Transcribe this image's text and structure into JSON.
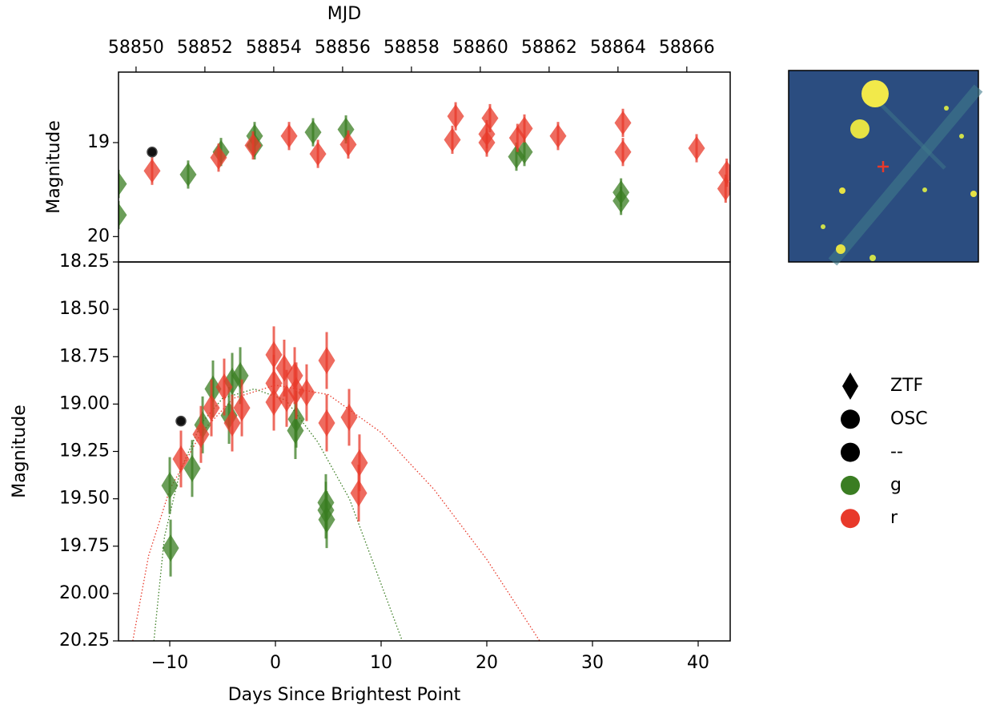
{
  "chart_data": [
    {
      "type": "scatter",
      "ylabel": "Magnitude",
      "x2label": "MJD",
      "xlim": [
        -14.85,
        43.03
      ],
      "ylim": [
        20.27,
        18.25
      ],
      "yticks": [
        19,
        20
      ],
      "x2lim": [
        58849.49,
        58867.26
      ],
      "x2ticks": [
        58850,
        58852,
        58854,
        58856,
        58858,
        58860,
        58862,
        58864,
        58866
      ],
      "series": [
        {
          "name": "g",
          "color": "#3a7d22",
          "marker": "diamond",
          "x": [
            -14.85,
            -14.85,
            -8.26,
            -5.15,
            -1.97,
            -1.97,
            3.56,
            6.67,
            22.8,
            23.56,
            32.7,
            32.7
          ],
          "values": [
            19.44,
            19.77,
            19.34,
            19.1,
            18.93,
            19.03,
            18.89,
            18.86,
            19.15,
            19.1,
            19.53,
            19.62
          ],
          "errors": [
            0.15,
            0.15,
            0.15,
            0.15,
            0.15,
            0.15,
            0.15,
            0.15,
            0.15,
            0.15,
            0.15,
            0.15
          ]
        },
        {
          "name": "r",
          "color": "#e8392a",
          "marker": "diamond",
          "x": [
            -11.67,
            -5.38,
            -2.12,
            1.29,
            4.02,
            6.89,
            16.74,
            17.05,
            20.0,
            20.0,
            20.3,
            22.9,
            23.56,
            26.74,
            32.88,
            32.88,
            39.85,
            42.7,
            42.6
          ],
          "values": [
            19.3,
            19.16,
            19.03,
            18.93,
            19.12,
            19.02,
            18.97,
            18.72,
            18.91,
            19.0,
            18.74,
            18.95,
            18.85,
            18.93,
            18.79,
            19.1,
            19.06,
            19.32,
            19.49
          ],
          "errors": [
            0.15,
            0.15,
            0.15,
            0.15,
            0.15,
            0.15,
            0.15,
            0.15,
            0.15,
            0.15,
            0.15,
            0.15,
            0.15,
            0.15,
            0.15,
            0.15,
            0.15,
            0.15,
            0.15
          ]
        },
        {
          "name": "OSC",
          "color": "#111111",
          "marker": "circle",
          "x": [
            -11.67
          ],
          "values": [
            19.1
          ]
        }
      ]
    },
    {
      "type": "scatter",
      "xlabel": "Days Since Brightest Point",
      "ylabel": "Magnitude",
      "xlim": [
        -14.85,
        43.03
      ],
      "xticks": [
        {
          "value": -10,
          "label": "−10"
        },
        0,
        10,
        20,
        30,
        40
      ],
      "ylim": [
        20.25,
        18.25
      ],
      "yticks": [
        18.25,
        {
          "value": 18.5,
          "label": "18.50"
        },
        18.75,
        {
          "value": 19.0,
          "label": "19.00"
        },
        19.25,
        {
          "value": 19.5,
          "label": "19.50"
        },
        19.75,
        {
          "value": 20.0,
          "label": "20.00"
        },
        20.25
      ],
      "series": [
        {
          "color": "#e8392a",
          "style": "dotted",
          "x": [
            -13.5,
            -12,
            -10,
            -7,
            -4,
            0,
            5,
            10,
            15,
            20,
            25
          ],
          "values": [
            20.25,
            19.8,
            19.45,
            19.15,
            18.97,
            18.9,
            18.95,
            19.15,
            19.45,
            19.82,
            20.25
          ]
        },
        {
          "color": "#3a7d22",
          "style": "dotted",
          "x": [
            -11.5,
            -10.5,
            -9,
            -7,
            -5,
            -2,
            1,
            4,
            7,
            10,
            12
          ],
          "values": [
            20.25,
            19.7,
            19.35,
            19.1,
            18.97,
            18.92,
            18.98,
            19.2,
            19.5,
            19.95,
            20.25
          ]
        },
        {
          "name": "g",
          "color": "#3a7d22",
          "marker": "diamond",
          "x": [
            -10,
            -9.92,
            -7.88,
            -6.89,
            -5.91,
            -4.39,
            -4.09,
            -3.33,
            1.89,
            1.97,
            4.77,
            4.85,
            4.77
          ],
          "values": [
            19.43,
            19.76,
            19.34,
            19.11,
            18.92,
            19.06,
            18.88,
            18.85,
            19.14,
            19.08,
            19.52,
            19.61,
            19.56
          ],
          "errors": [
            0.15,
            0.15,
            0.15,
            0.15,
            0.15,
            0.15,
            0.15,
            0.15,
            0.15,
            0.15,
            0.15,
            0.15,
            0.15
          ]
        },
        {
          "name": "r",
          "color": "#e8392a",
          "marker": "diamond",
          "x": [
            -8.94,
            -7.05,
            -6.06,
            -4.85,
            -4.09,
            -3.18,
            -0.15,
            -0.15,
            -0.15,
            0.83,
            1.06,
            1.82,
            1.97,
            2.95,
            4.85,
            4.85,
            6.97,
            7.95,
            7.88
          ],
          "values": [
            19.29,
            19.16,
            19.02,
            18.91,
            19.1,
            19.02,
            18.74,
            18.89,
            18.99,
            18.81,
            18.97,
            18.85,
            18.93,
            18.94,
            18.77,
            19.1,
            19.07,
            19.31,
            19.47
          ],
          "errors": [
            0.15,
            0.15,
            0.15,
            0.15,
            0.15,
            0.15,
            0.15,
            0.15,
            0.15,
            0.15,
            0.15,
            0.15,
            0.15,
            0.15,
            0.15,
            0.15,
            0.15,
            0.15,
            0.15
          ]
        },
        {
          "name": "OSC",
          "color": "#111111",
          "marker": "circle",
          "x": [
            -8.94
          ],
          "values": [
            19.09
          ]
        }
      ]
    }
  ],
  "legend": [
    {
      "label": "ZTF",
      "marker": "diamond",
      "color": "#000000"
    },
    {
      "label": "OSC",
      "marker": "circle",
      "color": "#000000"
    },
    {
      "label": "--",
      "marker": "circle",
      "color": "#000000"
    },
    {
      "label": "g",
      "marker": "circle",
      "color": "#3a7d22"
    },
    {
      "label": "r",
      "marker": "circle",
      "color": "#e8392a"
    }
  ]
}
